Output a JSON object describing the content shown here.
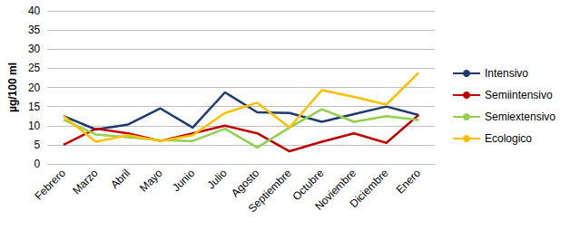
{
  "chart_data": {
    "type": "line",
    "y_label": "µg/100 ml",
    "categories": [
      "Febrero",
      "Marzo",
      "Abril",
      "Mayo",
      "Junio",
      "Julio",
      "Agosto",
      "Septiembre",
      "Octubre",
      "Noviembre",
      "Diciembre",
      "Enero"
    ],
    "series": [
      {
        "name": "Intensivo",
        "color": "#1f3a6e",
        "values": [
          12.5,
          9,
          10.3,
          14.5,
          9.5,
          18.7,
          13.5,
          13.3,
          11,
          13,
          15,
          12.8
        ]
      },
      {
        "name": "Semiintensivo",
        "color": "#c00000",
        "values": [
          5,
          9.2,
          8,
          6,
          8,
          10,
          8,
          3.3,
          5.8,
          8,
          5.5,
          12.8
        ]
      },
      {
        "name": "Semiextensivo",
        "color": "#92d050",
        "values": [
          11.5,
          7.7,
          7,
          6.2,
          6,
          9.2,
          4.3,
          9.5,
          14.3,
          11,
          12.5,
          11.5
        ]
      },
      {
        "name": "Ecologico",
        "color": "#ffc000",
        "values": [
          12.5,
          5.8,
          7.5,
          6,
          7.5,
          13.3,
          16,
          9.5,
          19.3,
          17.5,
          15.5,
          23.8
        ]
      }
    ],
    "ylim": [
      0,
      40
    ],
    "yticks": [
      0,
      5,
      10,
      15,
      20,
      25,
      30,
      35,
      40
    ],
    "grid": true,
    "legend": "right"
  }
}
